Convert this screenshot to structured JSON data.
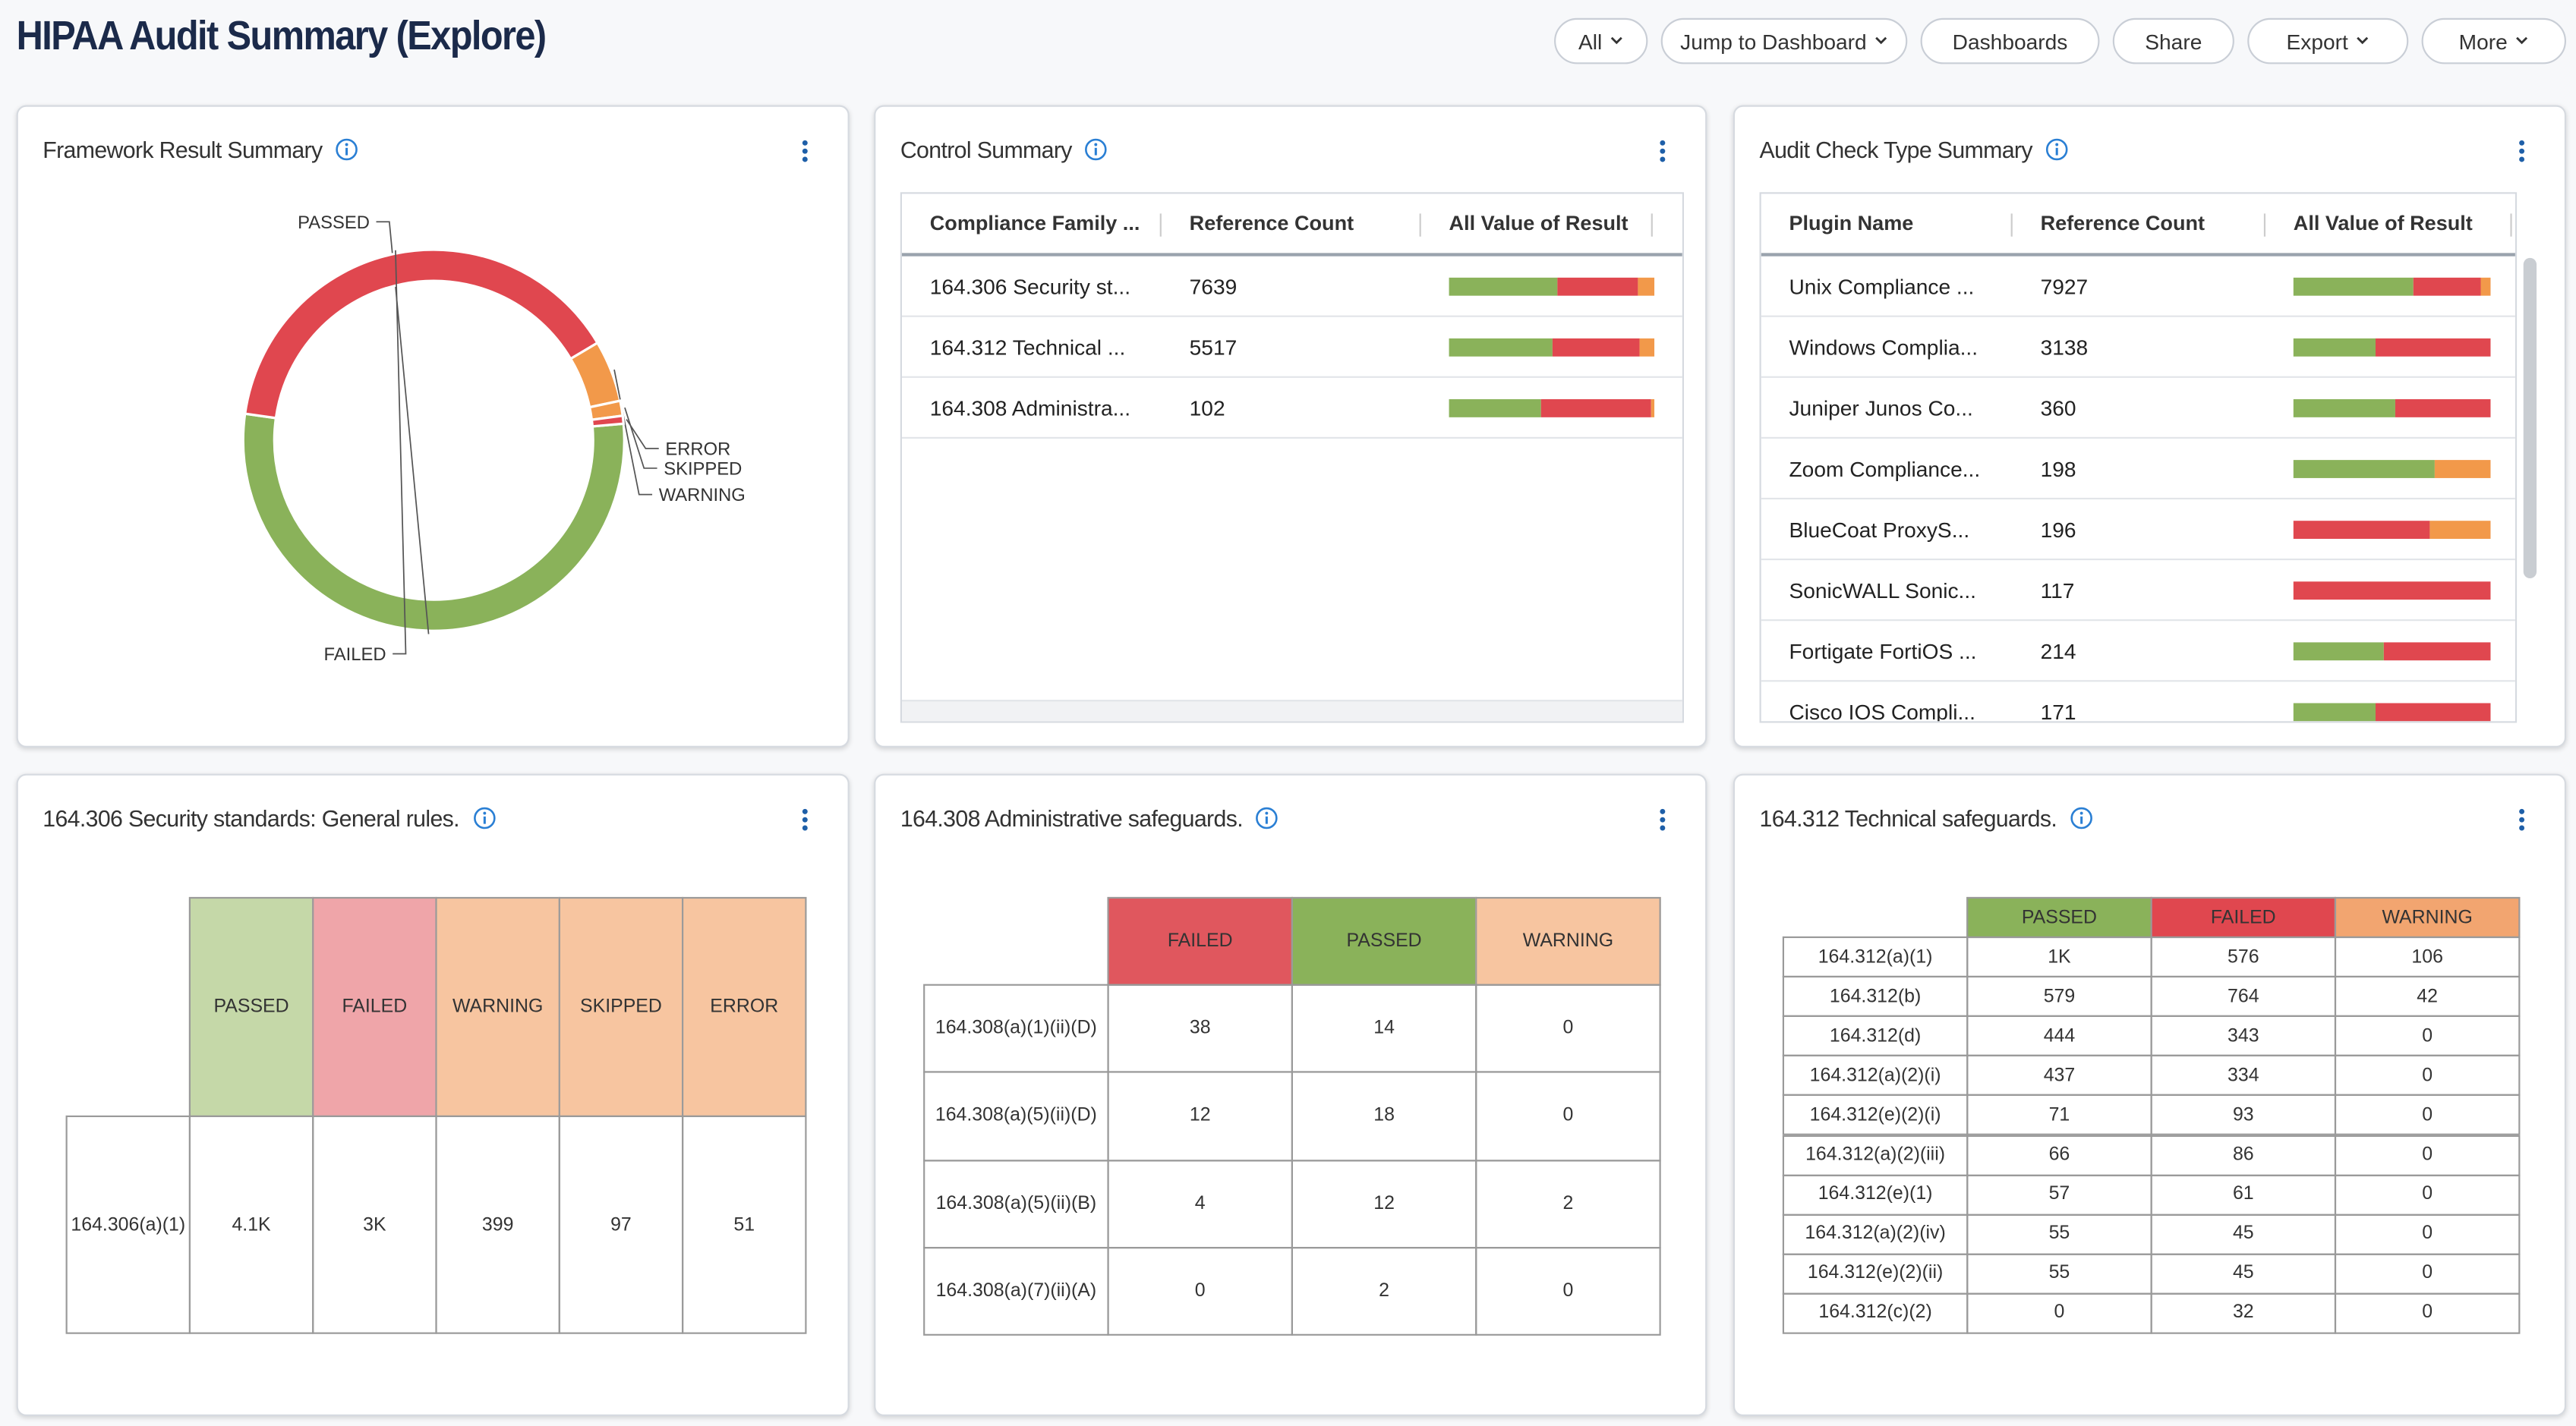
{
  "header": {
    "title": "HIPAA Audit Summary (Explore)"
  },
  "toolbar": [
    "All",
    "Jump to Dashboard",
    "Dashboards",
    "Share",
    "Export",
    "More"
  ],
  "chart_data": {
    "type": "pie",
    "title": "Framework Result Summary",
    "categories": [
      "PASSED",
      "FAILED",
      "WARNING",
      "SKIPPED",
      "ERROR"
    ],
    "values": [
      4100,
      3000,
      399,
      97,
      51
    ],
    "colors": [
      "#8ab25a",
      "#e0474f",
      "#f2994a",
      "#f2994a",
      "#e0474f"
    ]
  },
  "control_summary": {
    "title": "Control Summary",
    "columns": [
      "Compliance Family ...",
      "Reference Count",
      "All Value of Result"
    ],
    "segment_colors": [
      "#8ab25a",
      "#e0474f",
      "#f2994a"
    ],
    "rows": [
      {
        "name": "164.306 Security st...",
        "count": 7639,
        "segments": [
          53,
          39,
          8
        ]
      },
      {
        "name": "164.312 Technical ...",
        "count": 5517,
        "segments": [
          50,
          43,
          7
        ]
      },
      {
        "name": "164.308 Administra...",
        "count": 102,
        "segments": [
          45,
          53,
          2
        ]
      }
    ]
  },
  "audit_check_type_summary": {
    "title": "Audit Check Type Summary",
    "columns": [
      "Plugin Name",
      "Reference Count",
      "All Value of Result"
    ],
    "segment_colors": [
      "#8ab25a",
      "#e0474f",
      "#f2994a"
    ],
    "rows": [
      {
        "name": "Unix Compliance ...",
        "count": 7927,
        "segments": [
          61,
          34,
          5
        ]
      },
      {
        "name": "Windows Complia...",
        "count": 3138,
        "segments": [
          42,
          58,
          0
        ]
      },
      {
        "name": "Juniper Junos Co...",
        "count": 360,
        "segments": [
          52,
          48,
          0
        ]
      },
      {
        "name": "Zoom Compliance...",
        "count": 198,
        "segments": [
          72,
          0,
          28
        ]
      },
      {
        "name": "BlueCoat ProxyS...",
        "count": 196,
        "segments": [
          0,
          69,
          31
        ]
      },
      {
        "name": "SonicWALL Sonic...",
        "count": 117,
        "segments": [
          0,
          100,
          0
        ]
      },
      {
        "name": "Fortigate FortiOS ...",
        "count": 214,
        "segments": [
          46,
          54,
          0
        ]
      },
      {
        "name": "Cisco IOS Compli...",
        "count": 171,
        "segments": [
          42,
          58,
          0
        ]
      }
    ]
  },
  "security_standards": {
    "title": "164.306 Security standards: General rules.",
    "columns": [
      {
        "label": "PASSED",
        "color": "#c5d8a8"
      },
      {
        "label": "FAILED",
        "color": "#efa5a9"
      },
      {
        "label": "WARNING",
        "color": "#f7c5a0"
      },
      {
        "label": "SKIPPED",
        "color": "#f7c5a0"
      },
      {
        "label": "ERROR",
        "color": "#f7c5a0"
      }
    ],
    "rows": [
      {
        "label": "164.306(a)(1)",
        "cells": [
          "4.1K",
          "3K",
          "399",
          "97",
          "51"
        ]
      }
    ]
  },
  "administrative_safeguards": {
    "title": "164.308 Administrative safeguards.",
    "columns": [
      {
        "label": "FAILED",
        "color": "#e0575e"
      },
      {
        "label": "PASSED",
        "color": "#8ab25a"
      },
      {
        "label": "WARNING",
        "color": "#f7c5a0"
      }
    ],
    "rows": [
      {
        "label": "164.308(a)(1)(ii)(D)",
        "cells": [
          "38",
          "14",
          "0"
        ]
      },
      {
        "label": "164.308(a)(5)(ii)(D)",
        "cells": [
          "12",
          "18",
          "0"
        ]
      },
      {
        "label": "164.308(a)(5)(ii)(B)",
        "cells": [
          "4",
          "12",
          "2"
        ]
      },
      {
        "label": "164.308(a)(7)(ii)(A)",
        "cells": [
          "0",
          "2",
          "0"
        ]
      }
    ]
  },
  "technical_safeguards": {
    "title": "164.312 Technical safeguards.",
    "columns": [
      {
        "label": "PASSED",
        "color": "#8ab25a"
      },
      {
        "label": "FAILED",
        "color": "#e0474f"
      },
      {
        "label": "WARNING",
        "color": "#f2a570"
      }
    ],
    "rows": [
      {
        "label": "164.312(a)(1)",
        "cells": [
          "1K",
          "576",
          "106"
        ]
      },
      {
        "label": "164.312(b)",
        "cells": [
          "579",
          "764",
          "42"
        ]
      },
      {
        "label": "164.312(d)",
        "cells": [
          "444",
          "343",
          "0"
        ]
      },
      {
        "label": "164.312(a)(2)(i)",
        "cells": [
          "437",
          "334",
          "0"
        ]
      },
      {
        "label": "164.312(e)(2)(i)",
        "cells": [
          "71",
          "93",
          "0"
        ]
      },
      {
        "label": "164.312(a)(2)(iii)",
        "cells": [
          "66",
          "86",
          "0"
        ]
      },
      {
        "label": "164.312(e)(1)",
        "cells": [
          "57",
          "61",
          "0"
        ]
      },
      {
        "label": "164.312(a)(2)(iv)",
        "cells": [
          "55",
          "45",
          "0"
        ]
      },
      {
        "label": "164.312(e)(2)(ii)",
        "cells": [
          "55",
          "45",
          "0"
        ]
      },
      {
        "label": "164.312(c)(2)",
        "cells": [
          "0",
          "32",
          "0"
        ]
      }
    ]
  }
}
